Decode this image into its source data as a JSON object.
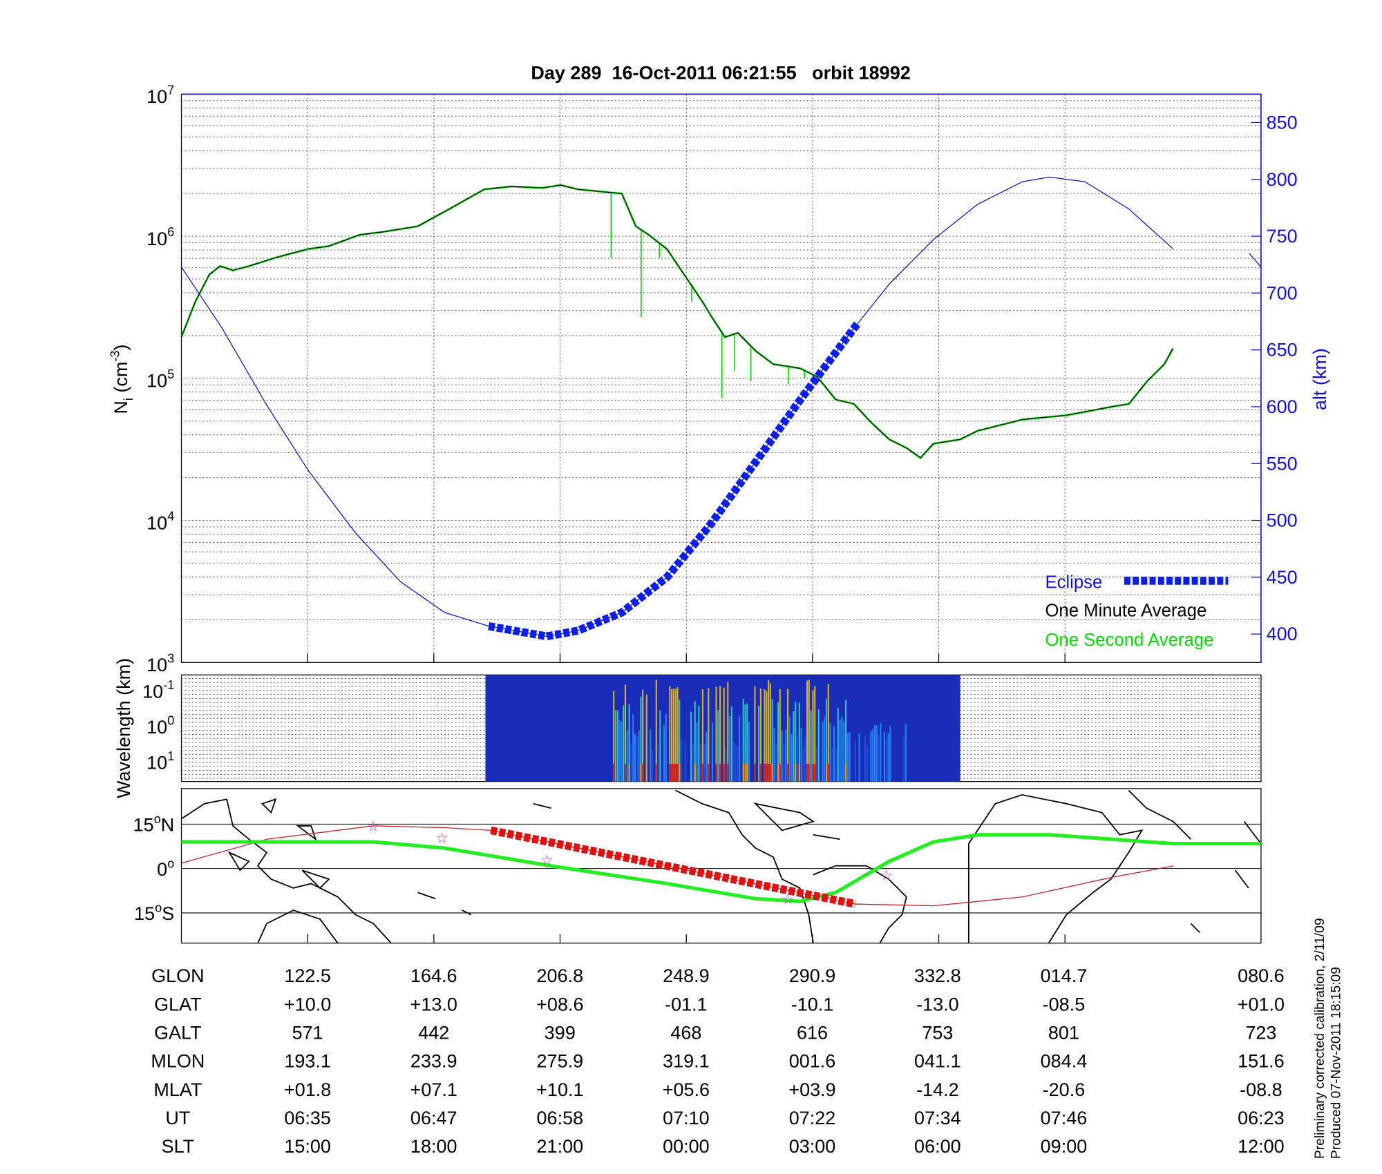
{
  "colors": {
    "ni_avg": "#000000",
    "ni_sec": "#00e000",
    "alt": "#1010d0",
    "eclipse": "#0a1ef0",
    "track": "#22ee22",
    "orbit": "#cc2020",
    "map_eclipse": "#e01010",
    "star": "#cc33cc"
  },
  "chart_data": [
    {
      "type": "line",
      "title": "Day 289  16-Oct-2011 06:21:55   orbit 18992",
      "xlabel": "",
      "x_units": "minutes elapsed from left edge",
      "xlim": [
        0,
        100.5
      ],
      "x_grid": [
        11.75,
        23.5,
        35.25,
        47.0,
        58.75,
        70.5,
        82.25
      ],
      "ylabel": "N",
      "ylabel_sub": "i",
      "ylabel_unit": " (cm",
      "ylabel_sup": "-3",
      "ylabel_end": ")",
      "yscale": "log",
      "ylim": [
        1000,
        10000000
      ],
      "yticks": [
        {
          "base": "10",
          "exp": "3"
        },
        {
          "base": "10",
          "exp": "4"
        },
        {
          "base": "10",
          "exp": "5"
        },
        {
          "base": "10",
          "exp": "6"
        },
        {
          "base": "10",
          "exp": "7"
        }
      ],
      "y2label": "alt (km)",
      "y2lim": [
        375,
        875
      ],
      "y2ticks": [
        "400",
        "450",
        "500",
        "550",
        "600",
        "650",
        "700",
        "750",
        "800",
        "850"
      ],
      "grid": true,
      "legend_position": "bottom-right",
      "legend": {
        "eclipse": "Eclipse",
        "one_minute": "One Minute Average",
        "one_second": "One Second Average"
      },
      "series": [
        {
          "name": "One Minute Average",
          "log10_values": [
            [
              0,
              5.29
            ],
            [
              1.3,
              5.54
            ],
            [
              2.6,
              5.73
            ],
            [
              3.6,
              5.79
            ],
            [
              4.8,
              5.76
            ],
            [
              6.3,
              5.79
            ],
            [
              8.8,
              5.85
            ],
            [
              11.8,
              5.91
            ],
            [
              13.7,
              5.93
            ],
            [
              16.6,
              6.01
            ],
            [
              18.7,
              6.03
            ],
            [
              22.0,
              6.07
            ],
            [
              24.9,
              6.19
            ],
            [
              28.2,
              6.33
            ],
            [
              30.7,
              6.35
            ],
            [
              33.6,
              6.34
            ],
            [
              35.3,
              6.36
            ],
            [
              36.9,
              6.33
            ],
            [
              41.0,
              6.3
            ],
            [
              42.3,
              6.07
            ],
            [
              43.5,
              6.01
            ],
            [
              45.2,
              5.91
            ],
            [
              46.8,
              5.73
            ],
            [
              48.5,
              5.54
            ],
            [
              49.3,
              5.44
            ],
            [
              50.6,
              5.29
            ],
            [
              51.8,
              5.32
            ],
            [
              53.5,
              5.19
            ],
            [
              55.1,
              5.1
            ],
            [
              57.6,
              5.07
            ],
            [
              59.2,
              5.01
            ],
            [
              60.9,
              4.85
            ],
            [
              62.6,
              4.82
            ],
            [
              64.2,
              4.69
            ],
            [
              65.9,
              4.57
            ],
            [
              67.5,
              4.51
            ],
            [
              68.8,
              4.44
            ],
            [
              70.0,
              4.54
            ],
            [
              72.5,
              4.57
            ],
            [
              74.1,
              4.63
            ],
            [
              78.3,
              4.71
            ],
            [
              82.4,
              4.74
            ],
            [
              86.6,
              4.8
            ],
            [
              88.2,
              4.82
            ],
            [
              89.9,
              4.98
            ],
            [
              91.5,
              5.1
            ],
            [
              92.3,
              5.21
            ]
          ]
        },
        {
          "name": "One Second Average",
          "spikes_log10": [
            [
              40.0,
              5.85
            ],
            [
              42.8,
              5.43
            ],
            [
              44.5,
              5.85
            ],
            [
              47.5,
              5.54
            ],
            [
              50.3,
              4.86
            ],
            [
              51.5,
              5.05
            ],
            [
              53.0,
              4.98
            ],
            [
              56.5,
              4.96
            ],
            [
              58.0,
              5.0
            ]
          ]
        },
        {
          "name": "alt (km)",
          "axis": "right",
          "values": [
            [
              0,
              723
            ],
            [
              3.8,
              669
            ],
            [
              7.9,
              602
            ],
            [
              11.8,
              544
            ],
            [
              16.2,
              489
            ],
            [
              20.4,
              446
            ],
            [
              24.5,
              419
            ],
            [
              28.6,
              407
            ],
            [
              34.0,
              398
            ],
            [
              36.9,
              403
            ],
            [
              41.0,
              419
            ],
            [
              45.2,
              450
            ],
            [
              49.3,
              497
            ],
            [
              53.5,
              552
            ],
            [
              57.6,
              606
            ],
            [
              62.6,
              669
            ],
            [
              65.9,
              708
            ],
            [
              70.0,
              747
            ],
            [
              74.1,
              778
            ],
            [
              78.3,
              798
            ],
            [
              80.8,
              802
            ],
            [
              84.1,
              798
            ],
            [
              88.2,
              774
            ],
            [
              92.3,
              739
            ]
          ],
          "tail": [
            [
              99.4,
              735
            ],
            [
              100.5,
              723
            ]
          ]
        },
        {
          "name": "Eclipse",
          "range": [
            28.6,
            63.0
          ]
        }
      ]
    },
    {
      "type": "heatmap",
      "ylabel": "Wavelength (km)",
      "yticks": [
        {
          "base": "10",
          "exp": "-1"
        },
        {
          "base": "10",
          "exp": "0"
        },
        {
          "base": "10",
          "exp": "1"
        }
      ],
      "data_range": [
        28.3,
        72.5
      ],
      "active_range": [
        40.0,
        62.0
      ]
    },
    {
      "type": "line",
      "name": "ground track map",
      "yticks": [
        {
          "deg": "15",
          "suffix": "N"
        },
        {
          "deg": "0",
          "suffix": ""
        },
        {
          "deg": "15",
          "suffix": "S"
        }
      ],
      "track": [
        [
          80.4,
          9
        ],
        [
          144.4,
          9
        ],
        [
          168.2,
          6.9
        ],
        [
          203.7,
          0.9
        ],
        [
          242.3,
          -5.1
        ],
        [
          271.9,
          -10.2
        ],
        [
          286.8,
          -11.1
        ],
        [
          298.6,
          -8.1
        ],
        [
          316.4,
          2.4
        ],
        [
          331.2,
          9
        ],
        [
          346.1,
          11.4
        ],
        [
          369.8,
          11.4
        ],
        [
          390.5,
          9.9
        ],
        [
          411.3,
          8.4
        ],
        [
          440.4,
          8.4
        ]
      ],
      "magnetic_equator": [
        [
          80.4,
          1.8
        ],
        [
          108.9,
          9.9
        ],
        [
          144.4,
          14.4
        ],
        [
          168.2,
          13.8
        ],
        [
          183.6,
          12.9
        ],
        [
          305.1,
          -12
        ],
        [
          331.2,
          -12.6
        ],
        [
          360.9,
          -9.6
        ],
        [
          390.5,
          -3
        ],
        [
          411.3,
          0.9
        ]
      ],
      "eclipse_segment": [
        [
          183.6,
          12.9
        ],
        [
          305.1,
          -12
        ]
      ],
      "stars": [
        [
          144.4,
          14.4
        ],
        [
          167.3,
          10.5
        ],
        [
          202.3,
          3
        ],
        [
          282.6,
          -10.2
        ],
        [
          315.5,
          -2.1
        ]
      ]
    }
  ],
  "table": {
    "rows": [
      {
        "label": "GLON",
        "values": [
          "122.5",
          "164.6",
          "206.8",
          "248.9",
          "290.9",
          "332.8",
          "014.7",
          "080.6"
        ]
      },
      {
        "label": "GLAT",
        "values": [
          "+10.0",
          "+13.0",
          "+08.6",
          "-01.1",
          "-10.1",
          "-13.0",
          "-08.5",
          "+01.0"
        ]
      },
      {
        "label": "GALT",
        "values": [
          "571",
          "442",
          "399",
          "468",
          "616",
          "753",
          "801",
          "723"
        ]
      },
      {
        "label": "MLON",
        "values": [
          "193.1",
          "233.9",
          "275.9",
          "319.1",
          "001.6",
          "041.1",
          "084.4",
          "151.6"
        ]
      },
      {
        "label": "MLAT",
        "values": [
          "+01.8",
          "+07.1",
          "+10.1",
          "+05.6",
          "+03.9",
          "-14.2",
          "-20.6",
          "-08.8"
        ]
      },
      {
        "label": "UT",
        "values": [
          "06:35",
          "06:47",
          "06:58",
          "07:10",
          "07:22",
          "07:34",
          "07:46",
          "06:23"
        ]
      },
      {
        "label": "SLT",
        "values": [
          "15:00",
          "18:00",
          "21:00",
          "00:00",
          "03:00",
          "06:00",
          "09:00",
          "12:00"
        ]
      }
    ]
  },
  "footer": {
    "line1": "Preliminary corrected calibration, 2/11/09",
    "line2": "Produced 07-Nov-2011 18:15:09"
  }
}
